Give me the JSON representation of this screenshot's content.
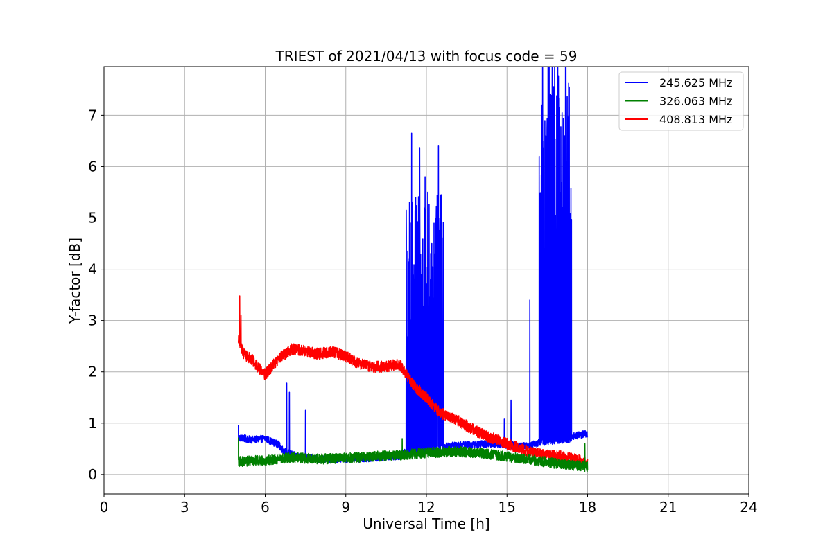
{
  "chart_data": {
    "type": "line",
    "title": "TRIEST of 2021/04/13 with focus code = 59",
    "xlabel": "Universal Time [h]",
    "ylabel": "Y-factor [dB]",
    "xlim": [
      0,
      24
    ],
    "ylim": [
      -0.38,
      7.95
    ],
    "xticks": [
      0,
      3,
      6,
      9,
      12,
      15,
      18,
      21,
      24
    ],
    "yticks": [
      0,
      1,
      2,
      3,
      4,
      5,
      6,
      7
    ],
    "grid": true,
    "legend_position": "top-right",
    "series": [
      {
        "name": "245.625 MHz",
        "color": "#0000ff",
        "base": [
          [
            5.0,
            0.72
          ],
          [
            5.5,
            0.68
          ],
          [
            6.0,
            0.7
          ],
          [
            6.5,
            0.58
          ],
          [
            6.7,
            0.45
          ],
          [
            7.2,
            0.35
          ],
          [
            8.0,
            0.3
          ],
          [
            9.0,
            0.3
          ],
          [
            10.0,
            0.32
          ],
          [
            11.0,
            0.36
          ],
          [
            11.25,
            0.45
          ],
          [
            12.7,
            0.55
          ],
          [
            13.5,
            0.58
          ],
          [
            14.5,
            0.6
          ],
          [
            15.0,
            0.58
          ],
          [
            15.7,
            0.55
          ],
          [
            16.2,
            0.62
          ],
          [
            17.4,
            0.7
          ],
          [
            17.5,
            0.75
          ],
          [
            18.0,
            0.8
          ]
        ],
        "noise": 0.07,
        "spikes": [
          [
            5.0,
            0.97
          ],
          [
            6.8,
            1.78
          ],
          [
            6.9,
            1.6
          ],
          [
            7.5,
            1.25
          ],
          [
            11.25,
            5.15
          ],
          [
            11.4,
            4.9
          ],
          [
            11.45,
            6.65
          ],
          [
            11.6,
            5.4
          ],
          [
            11.75,
            6.37
          ],
          [
            11.8,
            3.9
          ],
          [
            11.95,
            5.8
          ],
          [
            12.05,
            5.5
          ],
          [
            12.15,
            3.8
          ],
          [
            12.2,
            4.5
          ],
          [
            12.3,
            4.3
          ],
          [
            12.45,
            6.4
          ],
          [
            12.5,
            3.5
          ],
          [
            12.55,
            5.45
          ],
          [
            14.9,
            1.08
          ],
          [
            15.15,
            1.45
          ],
          [
            15.85,
            3.4
          ],
          [
            16.2,
            6.2
          ],
          [
            16.3,
            7.2
          ],
          [
            16.45,
            6.6
          ],
          [
            16.55,
            6.85
          ],
          [
            16.65,
            7.15
          ],
          [
            16.75,
            7.25
          ],
          [
            16.85,
            7.38
          ],
          [
            16.95,
            7.15
          ],
          [
            17.05,
            7.05
          ],
          [
            17.15,
            6.6
          ],
          [
            17.25,
            6.0
          ],
          [
            17.32,
            7.55
          ],
          [
            17.4,
            4.97
          ]
        ],
        "bursts": [
          [
            11.25,
            12.65,
            1.0,
            4.0
          ],
          [
            16.2,
            17.4,
            1.5,
            6.5
          ]
        ]
      },
      {
        "name": "326.063 MHz",
        "color": "#008000",
        "base": [
          [
            5.0,
            0.25
          ],
          [
            6.0,
            0.28
          ],
          [
            7.0,
            0.33
          ],
          [
            8.0,
            0.3
          ],
          [
            9.0,
            0.32
          ],
          [
            10.0,
            0.35
          ],
          [
            11.0,
            0.38
          ],
          [
            12.0,
            0.42
          ],
          [
            13.0,
            0.45
          ],
          [
            14.0,
            0.42
          ],
          [
            15.0,
            0.35
          ],
          [
            16.0,
            0.28
          ],
          [
            17.0,
            0.2
          ],
          [
            18.0,
            0.15
          ]
        ],
        "noise": 0.1,
        "spikes": [
          [
            5.0,
            0.72
          ],
          [
            11.1,
            0.7
          ],
          [
            17.9,
            0.6
          ]
        ],
        "bursts": []
      },
      {
        "name": "408.813 MHz",
        "color": "#ff0000",
        "base": [
          [
            5.0,
            2.65
          ],
          [
            5.2,
            2.35
          ],
          [
            5.5,
            2.25
          ],
          [
            5.8,
            2.05
          ],
          [
            6.0,
            1.95
          ],
          [
            6.5,
            2.25
          ],
          [
            7.0,
            2.45
          ],
          [
            7.5,
            2.4
          ],
          [
            8.0,
            2.35
          ],
          [
            8.5,
            2.4
          ],
          [
            9.0,
            2.3
          ],
          [
            9.5,
            2.15
          ],
          [
            10.0,
            2.1
          ],
          [
            10.5,
            2.1
          ],
          [
            11.0,
            2.15
          ],
          [
            11.5,
            1.75
          ],
          [
            12.0,
            1.5
          ],
          [
            12.5,
            1.2
          ],
          [
            13.0,
            1.1
          ],
          [
            13.5,
            0.95
          ],
          [
            14.0,
            0.8
          ],
          [
            14.5,
            0.7
          ],
          [
            15.0,
            0.6
          ],
          [
            15.5,
            0.5
          ],
          [
            16.0,
            0.42
          ],
          [
            16.5,
            0.38
          ],
          [
            17.0,
            0.35
          ],
          [
            17.5,
            0.3
          ],
          [
            18.0,
            0.22
          ]
        ],
        "noise": 0.11,
        "spikes": [
          [
            5.05,
            3.48
          ],
          [
            5.1,
            3.1
          ]
        ],
        "bursts": []
      }
    ]
  }
}
